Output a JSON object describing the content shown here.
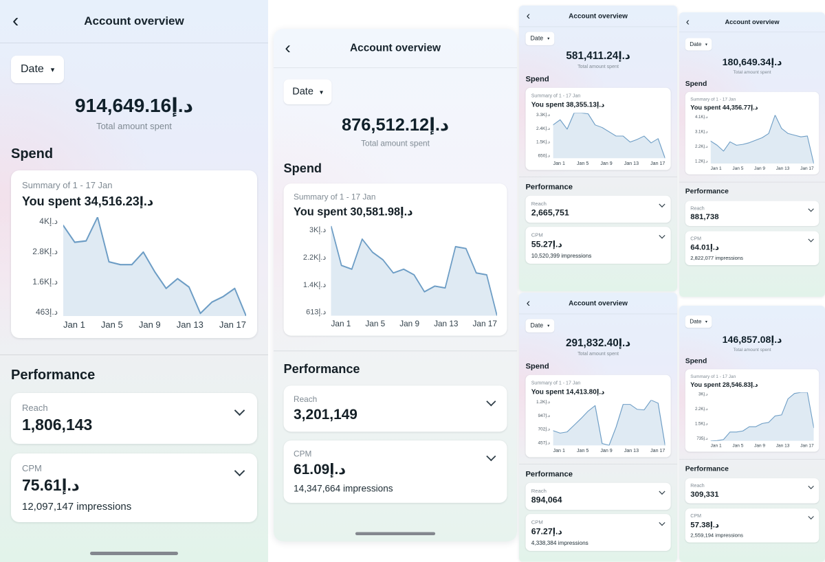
{
  "icons": {
    "back": "‹",
    "caret_down": "▾"
  },
  "colors": {
    "chart_line": "#6d9dc5",
    "chart_fill": "#dce8f2",
    "header_background": "#e7f0fb",
    "page_gradient_bottom": "#e2f3ea",
    "dark_text": "#1c2b33",
    "muted_text": "#7f8a93"
  },
  "panels": [
    {
      "header_title": "Account overview",
      "show_header": true,
      "show_home_indicator": true,
      "date_label": "Date",
      "total_amount": "914,649.16د.إ",
      "total_label": "Total amount spent",
      "spend_heading": "Spend",
      "summary_label": "Summary of 1 - 17 Jan",
      "spent_text": "You spent 34,516.23د.إ",
      "chart": {
        "type": "area",
        "x_range": "Jan 1 - Jan 17",
        "xticks": [
          "Jan 1",
          "Jan 5",
          "Jan 9",
          "Jan 13",
          "Jan 17"
        ],
        "yticks": [
          "4Kد.إ",
          "2.8Kد.إ",
          "1.6Kد.إ",
          "463د.إ"
        ],
        "ylim": [
          463,
          4000
        ],
        "values": [
          3700,
          3100,
          3150,
          4000,
          2400,
          2300,
          2300,
          2750,
          2050,
          1450,
          1800,
          1500,
          560,
          960,
          1160,
          1450,
          463
        ]
      },
      "performance_heading": "Performance",
      "reach_label": "Reach",
      "reach_value": "1,806,143",
      "cpm_label": "CPM",
      "cpm_value": "75.61د.إ",
      "cpm_impressions": "12,097,147 impressions"
    },
    {
      "header_title": "Account overview",
      "show_header": true,
      "show_home_indicator": true,
      "date_label": "Date",
      "total_amount": "876,512.12د.إ",
      "total_label": "Total amount spent",
      "spend_heading": "Spend",
      "summary_label": "Summary of 1 - 17 Jan",
      "spent_text": "You spent 30,581.98د.إ",
      "chart": {
        "type": "area",
        "x_range": "Jan 1 - Jan 17",
        "xticks": [
          "Jan 1",
          "Jan 5",
          "Jan 9",
          "Jan 13",
          "Jan 17"
        ],
        "yticks": [
          "3Kد.إ",
          "2.2Kد.إ",
          "1.4Kد.إ",
          "613د.إ"
        ],
        "ylim": [
          613,
          3000
        ],
        "values": [
          3000,
          1950,
          1850,
          2650,
          2300,
          2100,
          1750,
          1850,
          1700,
          1250,
          1400,
          1350,
          2450,
          2400,
          1750,
          1700,
          613
        ]
      },
      "performance_heading": "Performance",
      "reach_label": "Reach",
      "reach_value": "3,201,149",
      "cpm_label": "CPM",
      "cpm_value": "61.09د.إ",
      "cpm_impressions": "14,347,664 impressions"
    },
    {
      "header_title": "Account overview",
      "show_header": true,
      "show_home_indicator": false,
      "date_label": "Date",
      "total_amount": "581,411.24د.إ",
      "total_label": "Total amount spent",
      "spend_heading": "Spend",
      "summary_label": "Summary of 1 - 17 Jan",
      "spent_text": "You spent 38,355.13د.إ",
      "chart": {
        "type": "area",
        "x_range": "Jan 1 - Jan 17",
        "xticks": [
          "Jan 1",
          "Jan 5",
          "Jan 9",
          "Jan 13",
          "Jan 17"
        ],
        "yticks": [
          "3.3Kد.إ",
          "2.4Kد.إ",
          "1.5Kد.إ",
          "650د.إ"
        ],
        "ylim": [
          650,
          3300
        ],
        "values": [
          2600,
          2900,
          2350,
          3300,
          3300,
          3250,
          2600,
          2450,
          2200,
          1950,
          1950,
          1600,
          1750,
          1950,
          1550,
          1800,
          650
        ]
      },
      "performance_heading": "Performance",
      "reach_label": "Reach",
      "reach_value": "2,665,751",
      "cpm_label": "CPM",
      "cpm_value": "55.27د.إ",
      "cpm_impressions": "10,520,399 impressions"
    },
    {
      "header_title": "Account overview",
      "show_header": true,
      "show_home_indicator": false,
      "date_label": "Date",
      "total_amount": "291,832.40د.إ",
      "total_label": "Total amount spent",
      "spend_heading": "Spend",
      "summary_label": "Summary of 1 - 17 Jan",
      "spent_text": "You spent 14,413.80د.إ",
      "chart": {
        "type": "area",
        "x_range": "Jan 1 - Jan 17",
        "xticks": [
          "Jan 1",
          "Jan 5",
          "Jan 9",
          "Jan 13",
          "Jan 17"
        ],
        "yticks": [
          "1.2Kد.إ",
          "947د.إ",
          "702د.إ",
          "457د.إ"
        ],
        "ylim": [
          457,
          1200
        ],
        "values": [
          700,
          660,
          680,
          790,
          900,
          1020,
          1110,
          490,
          460,
          760,
          1130,
          1130,
          1050,
          1040,
          1200,
          1150,
          460
        ]
      },
      "performance_heading": "Performance",
      "reach_label": "Reach",
      "reach_value": "894,064",
      "cpm_label": "CPM",
      "cpm_value": "67.27د.إ",
      "cpm_impressions": "4,338,384 impressions"
    },
    {
      "header_title": "Account overview",
      "show_header": true,
      "show_home_indicator": false,
      "date_label": "Date",
      "total_amount": "180,649.34د.إ",
      "total_label": "Total amount spent",
      "spend_heading": "Spend",
      "summary_label": "Summary of 1 - 17 Jan",
      "spent_text": "You spent 44,356.77د.إ",
      "chart": {
        "type": "area",
        "x_range": "Jan 1 - Jan 17",
        "xticks": [
          "Jan 1",
          "Jan 5",
          "Jan 9",
          "Jan 13",
          "Jan 17"
        ],
        "yticks": [
          "4.1Kد.إ",
          "3.1Kد.إ",
          "2.2Kد.إ",
          "1.2Kد.إ"
        ],
        "ylim": [
          1200,
          4100
        ],
        "values": [
          2550,
          2300,
          1950,
          2500,
          2300,
          2350,
          2450,
          2600,
          2750,
          3000,
          4100,
          3300,
          3000,
          2900,
          2800,
          2850,
          1200
        ]
      },
      "performance_heading": "Performance",
      "reach_label": "Reach",
      "reach_value": "881,738",
      "cpm_label": "CPM",
      "cpm_value": "64.01د.إ",
      "cpm_impressions": "2,822,077 impressions"
    },
    {
      "header_title": "Account overview",
      "show_header": false,
      "show_home_indicator": false,
      "date_label": "Date",
      "total_amount": "146,857.08د.إ",
      "total_label": "Total amount spent",
      "spend_heading": "Spend",
      "summary_label": "Summary of 1 - 17 Jan",
      "spent_text": "You spent 28,546.83د.إ",
      "chart": {
        "type": "area",
        "x_range": "Jan 1 - Jan 17",
        "xticks": [
          "Jan 1",
          "Jan 5",
          "Jan 9",
          "Jan 13",
          "Jan 17"
        ],
        "yticks": [
          "3Kد.إ",
          "2.2Kد.إ",
          "1.5Kد.إ",
          "735د.إ"
        ],
        "ylim": [
          735,
          3000
        ],
        "values": [
          735,
          750,
          800,
          1150,
          1150,
          1200,
          1400,
          1400,
          1550,
          1600,
          1900,
          1950,
          2700,
          2950,
          3000,
          3000,
          1350
        ]
      },
      "performance_heading": "Performance",
      "reach_label": "Reach",
      "reach_value": "309,331",
      "cpm_label": "CPM",
      "cpm_value": "57.38د.إ",
      "cpm_impressions": "2,559,194 impressions"
    }
  ]
}
